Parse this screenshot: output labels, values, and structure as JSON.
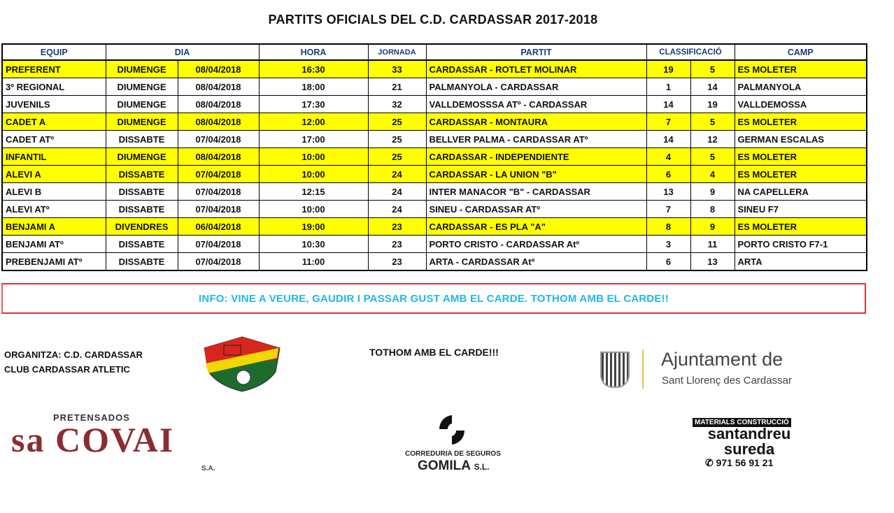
{
  "title": "PARTITS OFICIALS DEL C.D. CARDASSAR 2017-2018",
  "table": {
    "headers": [
      "EQUIP",
      "DIA",
      "HORA",
      "JORNADA",
      "PARTIT",
      "CLASSIFICACIÓ",
      "CAMP"
    ],
    "highlight_color": "#ffff00",
    "rows": [
      {
        "equip": "PREFERENT",
        "dia": "DIUMENGE",
        "data": "08/04/2018",
        "hora": "16:30",
        "jornada": "33",
        "partit": "CARDASSAR - ROTLET MOLINAR",
        "c1": "19",
        "c2": "5",
        "camp": "ES MOLETER",
        "highlight": true
      },
      {
        "equip": "3º REGIONAL",
        "dia": "DIUMENGE",
        "data": "08/04/2018",
        "hora": "18:00",
        "jornada": "21",
        "partit": "PALMANYOLA - CARDASSAR",
        "c1": "1",
        "c2": "14",
        "camp": "PALMANYOLA",
        "highlight": false
      },
      {
        "equip": "JUVENILS",
        "dia": "DIUMENGE",
        "data": "08/04/2018",
        "hora": "17:30",
        "jornada": "32",
        "partit": "VALLDEMOSSSA ATº - CARDASSAR",
        "c1": "14",
        "c2": "19",
        "camp": "VALLDEMOSSA",
        "highlight": false
      },
      {
        "equip": "CADET A",
        "dia": "DIUMENGE",
        "data": "08/04/2018",
        "hora": "12:00",
        "jornada": "25",
        "partit": "CARDASSAR - MONTAURA",
        "c1": "7",
        "c2": "5",
        "camp": "ES MOLETER",
        "highlight": true
      },
      {
        "equip": "CADET ATº",
        "dia": "DISSABTE",
        "data": "07/04/2018",
        "hora": "17:00",
        "jornada": "25",
        "partit": "BELLVER PALMA - CARDASSAR ATº",
        "c1": "14",
        "c2": "12",
        "camp": "GERMAN ESCALAS",
        "highlight": false
      },
      {
        "equip": "INFANTIL",
        "dia": "DIUMENGE",
        "data": "08/04/2018",
        "hora": "10:00",
        "jornada": "25",
        "partit": "CARDASSAR - INDEPENDIENTE",
        "c1": "4",
        "c2": "5",
        "camp": "ES MOLETER",
        "highlight": true
      },
      {
        "equip": "ALEVI A",
        "dia": "DISSABTE",
        "data": "07/04/2018",
        "hora": "10:00",
        "jornada": "24",
        "partit": "CARDASSAR - LA UNION \"B\"",
        "c1": "6",
        "c2": "4",
        "camp": "ES MOLETER",
        "highlight": true
      },
      {
        "equip": "ALEVI B",
        "dia": "DISSABTE",
        "data": "07/04/2018",
        "hora": "12:15",
        "jornada": "24",
        "partit": " INTER MANACOR \"B\" - CARDASSAR",
        "c1": "13",
        "c2": "9",
        "camp": "NA CAPELLERA",
        "highlight": false
      },
      {
        "equip": "ALEVI ATº",
        "dia": "DISSABTE",
        "data": "07/04/2018",
        "hora": "10:00",
        "jornada": "24",
        "partit": "SINEU - CARDASSAR ATº",
        "c1": "7",
        "c2": "8",
        "camp": "SINEU F7",
        "highlight": false
      },
      {
        "equip": "BENJAMI A",
        "dia": "DIVENDRES",
        "data": "06/04/2018",
        "hora": "19:00",
        "jornada": "23",
        "partit": "CARDASSAR - ES PLA \"A\"",
        "c1": "8",
        "c2": "9",
        "camp": "ES MOLETER",
        "highlight": true
      },
      {
        "equip": "BENJAMI ATº",
        "dia": "DISSABTE",
        "data": "07/04/2018",
        "hora": "10:30",
        "jornada": "23",
        "partit": "PORTO CRISTO - CARDASSAR Atº",
        "c1": "3",
        "c2": "11",
        "camp": "PORTO CRISTO F7-1",
        "highlight": false
      },
      {
        "equip": "PREBENJAMI ATº",
        "dia": "DISSABTE",
        "data": "07/04/2018",
        "hora": "11:00",
        "jornada": "23",
        "partit": "ARTA - CARDASSAR Atº",
        "c1": "6",
        "c2": "13",
        "camp": "ARTA",
        "highlight": false
      }
    ]
  },
  "info": "INFO: VINE A VEURE, GAUDIR I PASSAR GUST AMB EL CARDE. TOTHOM AMB EL CARDE!!",
  "organizer": {
    "line1": "ORGANITZA: C.D. CARDASSAR",
    "line2": "CLUB CARDASSAR ATLETIC"
  },
  "slogan": "TOTHOM AMB EL CARDE!!!",
  "logos": {
    "club": "C.D. CARDASSAR",
    "ajuntament": {
      "line1": "Ajuntament de",
      "line2": "Sant Llorenç des Cardassar"
    },
    "sacovai": {
      "top": "PRETENSADOS",
      "main": "sa COVAI",
      "suffix": "S.A."
    },
    "gomila": {
      "line1": "CORREDURIA DE SEGUROS",
      "line2": "GOMILA",
      "suffix": "S.L."
    },
    "santandreu": {
      "tag": "MATERIALS CONSTRUCCIÓ",
      "line1": "santandreu",
      "line2": "sureda",
      "phone": "971 56 91 21"
    }
  }
}
